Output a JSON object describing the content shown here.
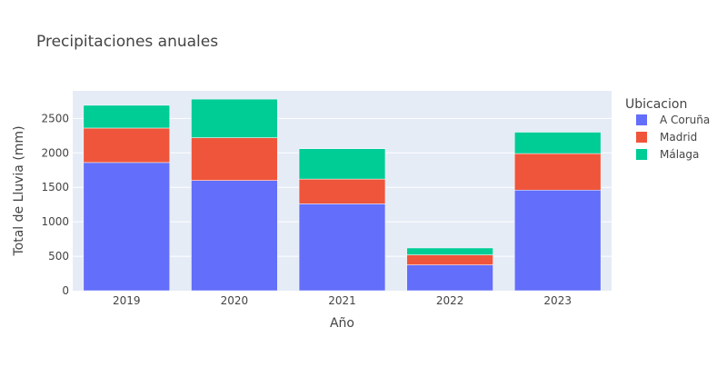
{
  "chart_data": {
    "type": "bar",
    "stacked": true,
    "title": "Precipitaciones anuales",
    "xlabel": "Año",
    "ylabel": "Total de Lluvia (mm)",
    "categories": [
      "2019",
      "2020",
      "2021",
      "2022",
      "2023"
    ],
    "series": [
      {
        "name": "A Coruña",
        "color": "#636efa",
        "values": [
          1860,
          1600,
          1260,
          375,
          1460
        ]
      },
      {
        "name": "Madrid",
        "color": "#ef553b",
        "values": [
          500,
          620,
          360,
          145,
          530
        ]
      },
      {
        "name": "Málaga",
        "color": "#00cc96",
        "values": [
          330,
          560,
          440,
          100,
          310
        ]
      }
    ],
    "ylim": [
      0,
      2900
    ],
    "yticks": [
      0,
      500,
      1000,
      1500,
      2000,
      2500
    ],
    "grid": true,
    "plot_background": "#e5ecf6",
    "legend": {
      "title": "Ubicacion",
      "position": "right"
    }
  }
}
